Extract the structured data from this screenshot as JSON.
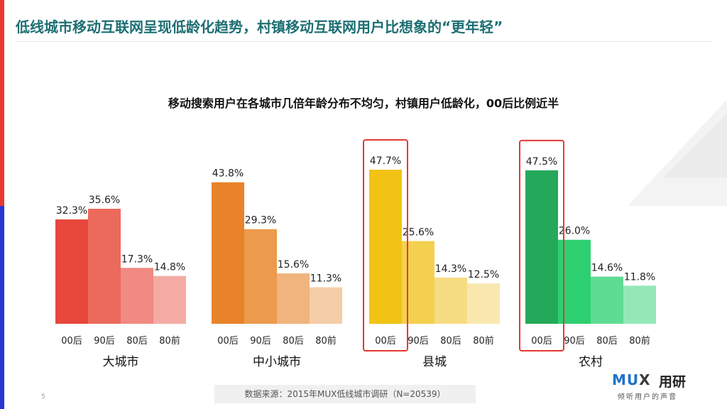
{
  "slide": {
    "headline": "低线城市移动互联网呈现低龄化趋势，村镇移动互联网用户比想象的“更年轻”",
    "subtitle": "移动搜索用户在各城市几倍年龄分布不均匀，村镇用户低龄化，00后比例近半",
    "source": "数据来源：2015年MUX低线城市调研（N=20539）",
    "page_number": "5"
  },
  "logo": {
    "mark_mu": "MU",
    "mark_x": "X",
    "name": "用研",
    "tagline": "倾听用户的声音"
  },
  "colors": {
    "大城市": [
      "#e8473c",
      "#ec6a5c",
      "#f08a82",
      "#f4aba4"
    ],
    "中小城市": [
      "#e8832a",
      "#ec9a4d",
      "#f0b47e",
      "#f5cda8"
    ],
    "县城": [
      "#f2c314",
      "#f4d04f",
      "#f6dc82",
      "#f8e8ae"
    ],
    "农村": [
      "#24a95a",
      "#2dd070",
      "#5fdc94",
      "#94e8b8"
    ],
    "highlight": "#e53935"
  },
  "chart_data": {
    "type": "bar",
    "title": "移动搜索用户在各城市几倍年龄分布不均匀，村镇用户低龄化，00后比例近半",
    "categories": [
      "00后",
      "90后",
      "80后",
      "80前"
    ],
    "unit": "%",
    "ylim": [
      0,
      50
    ],
    "grid": false,
    "series": [
      {
        "name": "大城市",
        "values": [
          32.3,
          35.6,
          17.3,
          14.8
        ],
        "labels": [
          "32.3%",
          "35.6%",
          "17.3%",
          "14.8%"
        ]
      },
      {
        "name": "中小城市",
        "values": [
          43.8,
          29.3,
          15.6,
          11.3
        ],
        "labels": [
          "43.8%",
          "29.3%",
          "15.6%",
          "11.3%"
        ]
      },
      {
        "name": "县城",
        "values": [
          47.7,
          25.6,
          14.3,
          12.5
        ],
        "labels": [
          "47.7%",
          "25.6%",
          "14.3%",
          "12.5%"
        ],
        "highlight_index": 0
      },
      {
        "name": "农村",
        "values": [
          47.5,
          26.0,
          14.6,
          11.8
        ],
        "labels": [
          "47.5%",
          "26.0%",
          "14.6%",
          "11.8%"
        ],
        "highlight_index": 0
      }
    ]
  }
}
